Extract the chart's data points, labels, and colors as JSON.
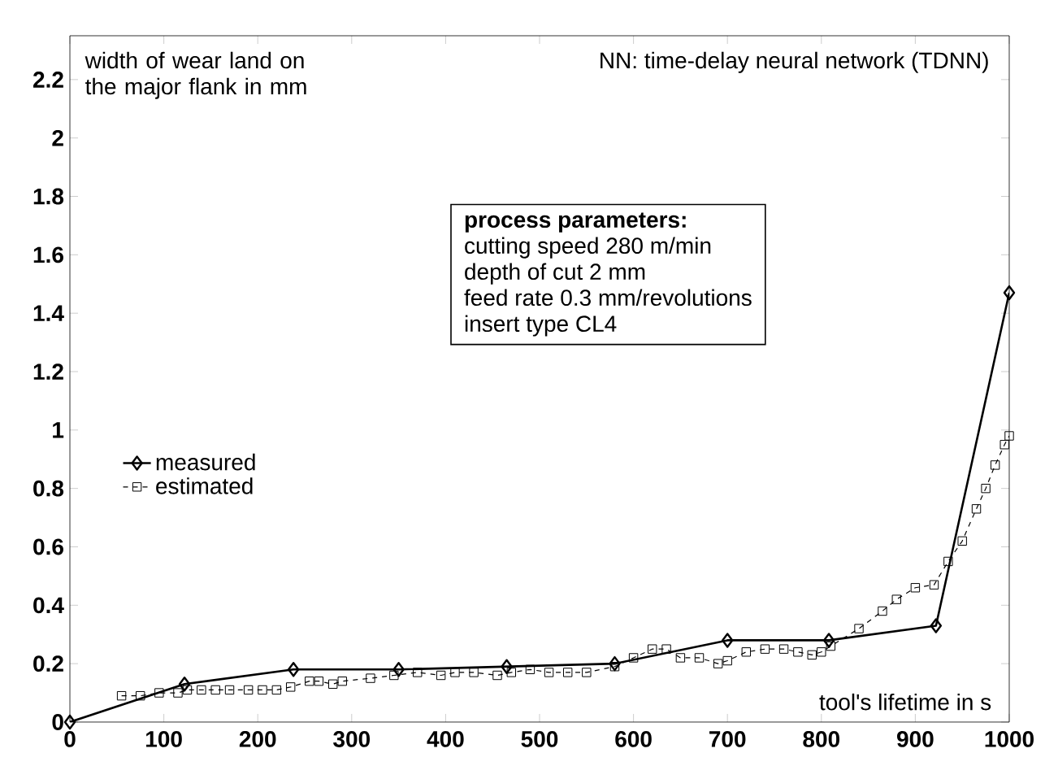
{
  "chart_data": {
    "type": "line",
    "title": "NN: time-delay neural network (TDNN)",
    "xlabel": "tool's lifetime in s",
    "ylabel": "width of wear land on the major flank in mm",
    "annotations": [
      "process parameters:",
      "cutting speed 280 m/min",
      "depth of cut 2 mm",
      "feed rate 0.3 mm/revolutions",
      "insert type CL4"
    ],
    "xlim": [
      0,
      1000
    ],
    "ylim": [
      0,
      2.35
    ],
    "xticks": [
      0,
      100,
      200,
      300,
      400,
      500,
      600,
      700,
      800,
      900,
      1000
    ],
    "yticks": [
      0,
      0.2,
      0.4,
      0.6,
      0.8,
      1,
      1.2,
      1.4,
      1.6,
      1.8,
      2,
      2.2
    ],
    "grid": false,
    "legend": "left",
    "series": [
      {
        "name": "measured",
        "color": "#000000",
        "marker": "diamond",
        "line_style": "solid",
        "x": [
          0,
          122,
          238,
          350,
          465,
          580,
          700,
          808,
          922,
          1000
        ],
        "values": [
          0,
          0.13,
          0.18,
          0.18,
          0.19,
          0.2,
          0.28,
          0.28,
          0.33,
          1.47
        ]
      },
      {
        "name": "estimated",
        "color": "#000000",
        "marker": "square",
        "line_style": "dashed",
        "x": [
          55,
          75,
          95,
          115,
          125,
          140,
          155,
          170,
          190,
          205,
          220,
          235,
          255,
          265,
          280,
          290,
          320,
          345,
          370,
          395,
          410,
          430,
          455,
          470,
          490,
          510,
          530,
          550,
          580,
          600,
          620,
          635,
          650,
          670,
          690,
          700,
          720,
          740,
          760,
          775,
          790,
          800,
          810,
          840,
          865,
          880,
          900,
          920,
          935,
          950,
          965,
          975,
          985,
          995,
          1000
        ],
        "values": [
          0.09,
          0.09,
          0.1,
          0.1,
          0.11,
          0.11,
          0.11,
          0.11,
          0.11,
          0.11,
          0.11,
          0.12,
          0.14,
          0.14,
          0.13,
          0.14,
          0.15,
          0.16,
          0.17,
          0.16,
          0.17,
          0.17,
          0.16,
          0.17,
          0.18,
          0.17,
          0.17,
          0.17,
          0.19,
          0.22,
          0.25,
          0.25,
          0.22,
          0.22,
          0.2,
          0.21,
          0.24,
          0.25,
          0.25,
          0.24,
          0.23,
          0.24,
          0.26,
          0.32,
          0.38,
          0.42,
          0.46,
          0.47,
          0.55,
          0.62,
          0.73,
          0.8,
          0.88,
          0.95,
          0.98
        ]
      }
    ]
  }
}
